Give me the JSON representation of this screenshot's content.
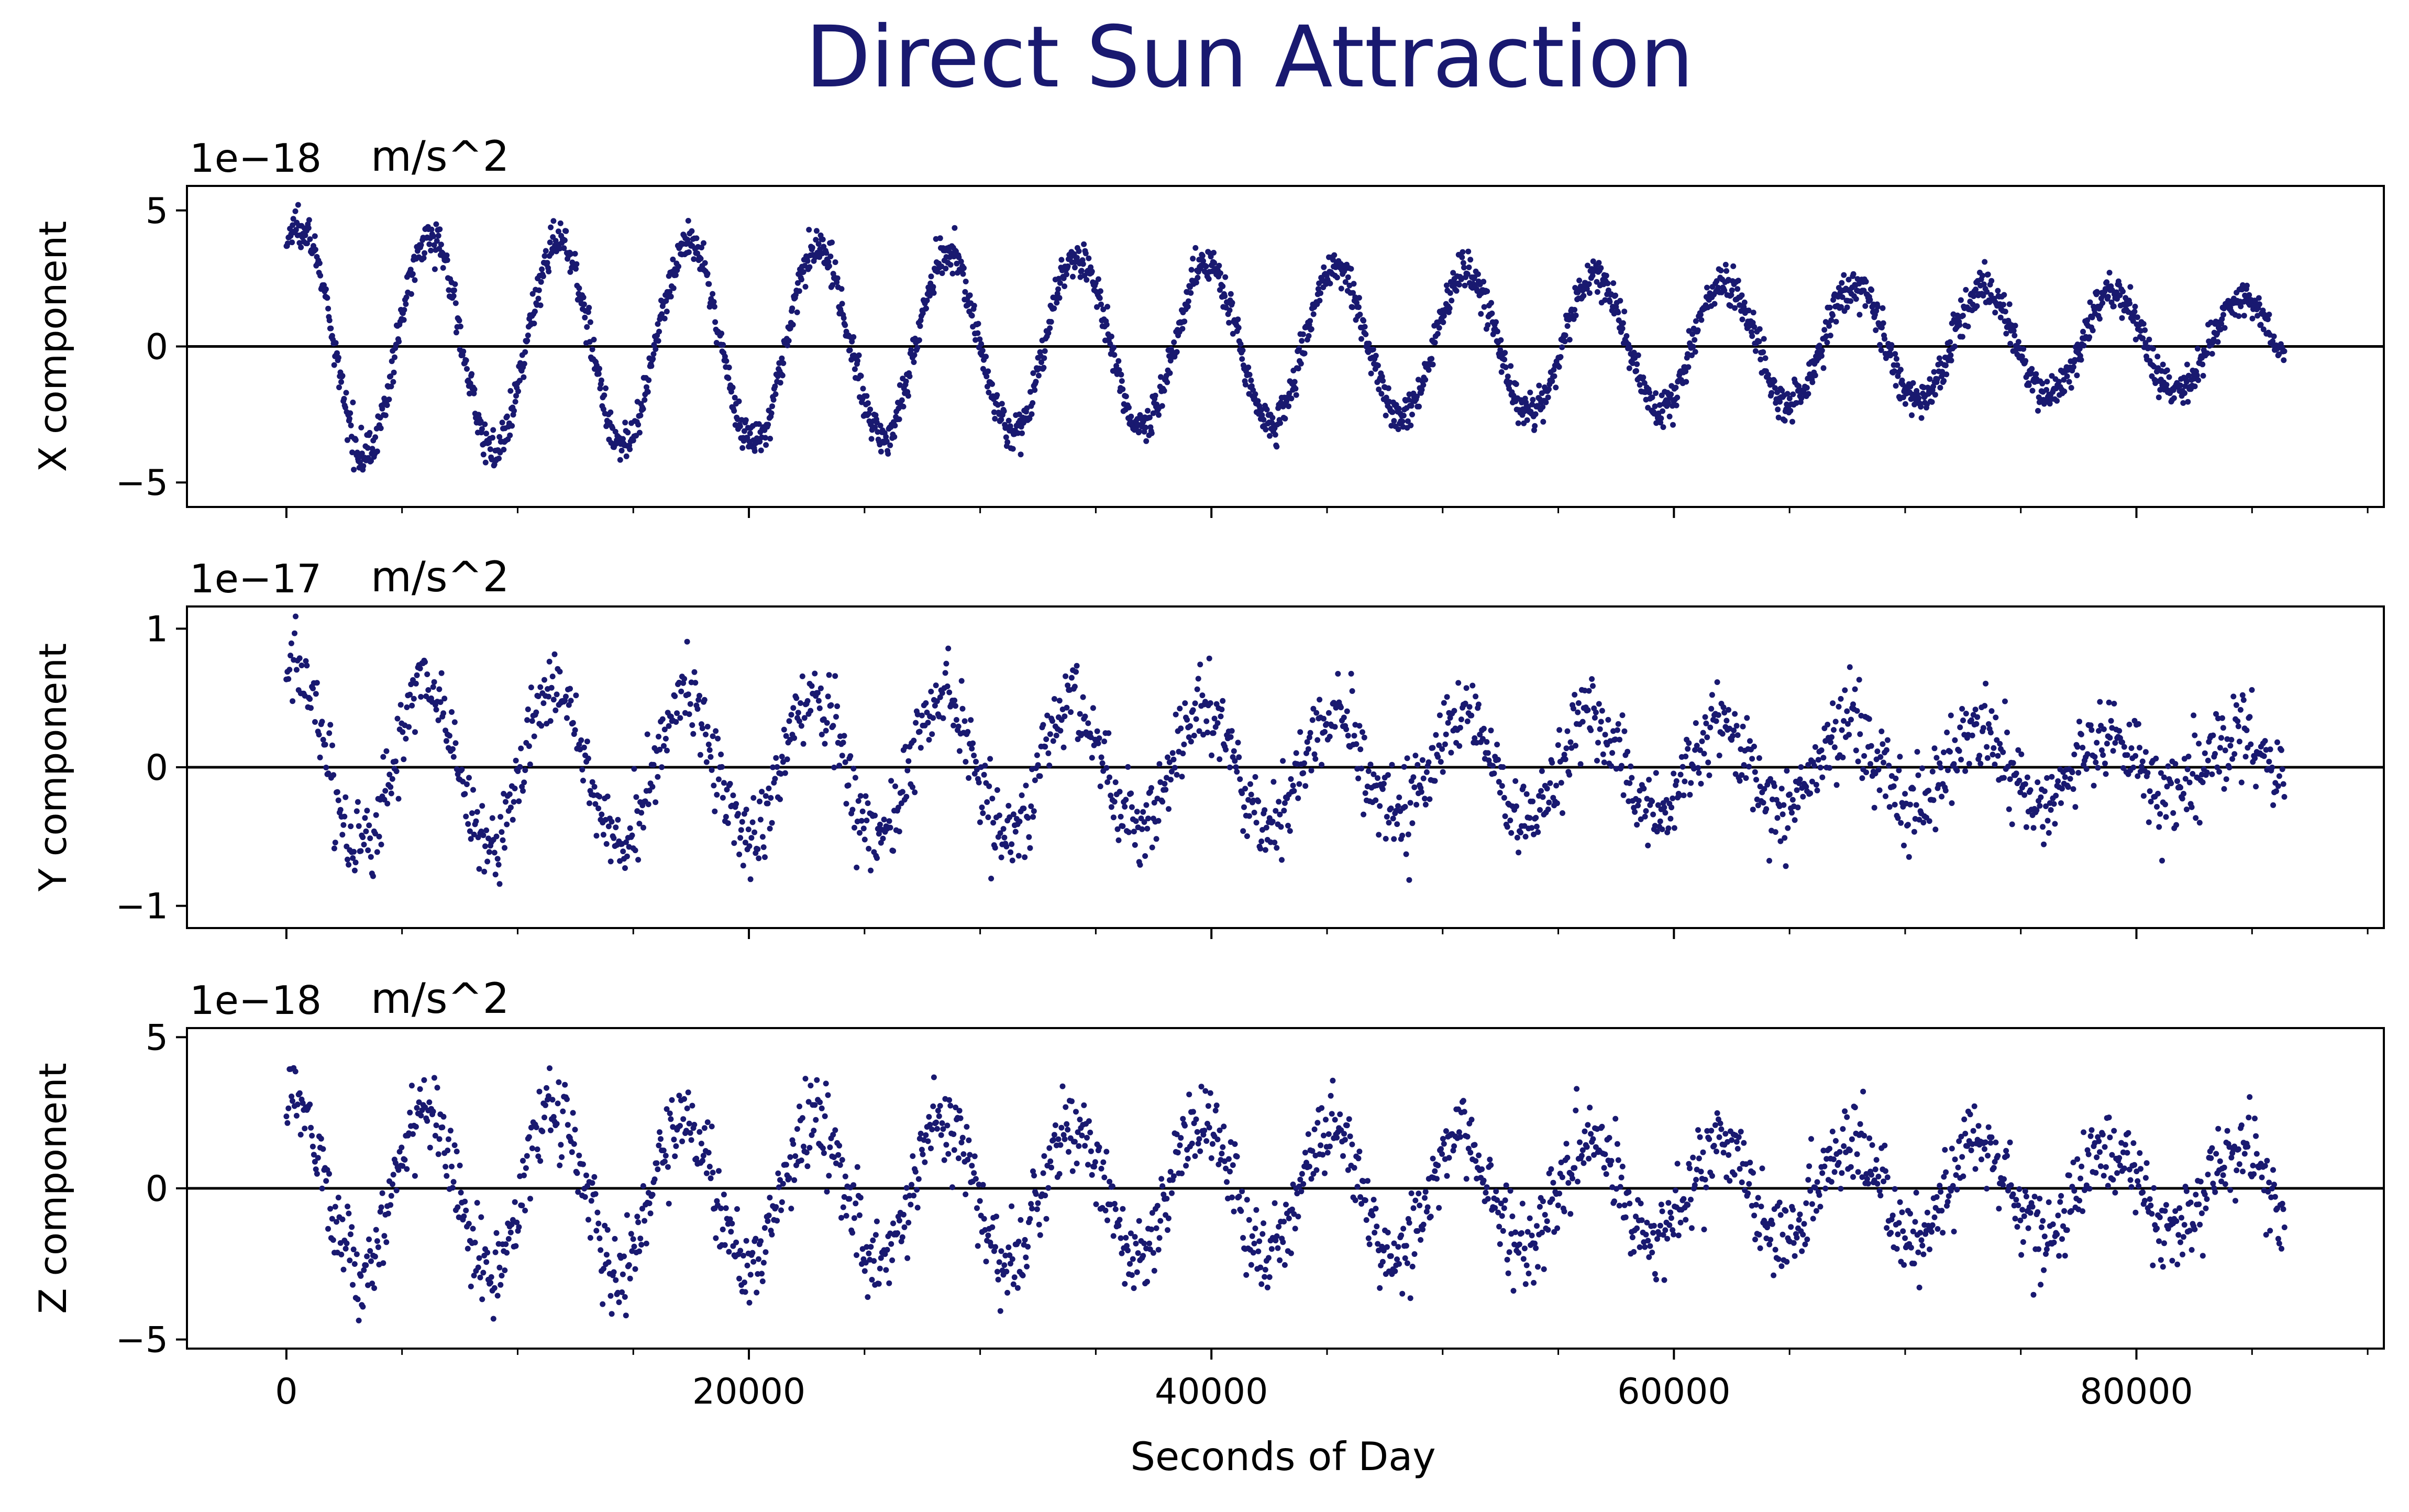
{
  "title": "Direct Sun Attraction",
  "xlabel": "Seconds of Day",
  "colors": {
    "points": "#191970",
    "title": "#191970",
    "axis": "#000000",
    "zero_line": "#000000"
  },
  "chart_data": [
    {
      "type": "scatter",
      "ylabel": "X component",
      "exponent": "1e−18",
      "unit": "m/s^2",
      "xlim": [
        -4300,
        90700
      ],
      "ylim": [
        -5.9,
        5.9
      ],
      "xticks": [
        0,
        20000,
        40000,
        60000,
        80000
      ],
      "xtick_labels": [
        "0",
        "20000",
        "40000",
        "60000",
        "80000"
      ],
      "yticks": [
        -5,
        0,
        5
      ],
      "ytick_labels": [
        "−5",
        "0",
        "5"
      ],
      "zero_line": true,
      "series": [
        {
          "x_start": 0,
          "x_end": 86400,
          "n_points": 2880,
          "period_s": 5600,
          "phase_s": 600,
          "amplitude_start": 4.2,
          "amplitude_end": 1.6,
          "offset": 0.1,
          "offset_start": 0.3,
          "noise": 0.35
        }
      ]
    },
    {
      "type": "scatter",
      "ylabel": "Y component",
      "exponent": "1e−17",
      "unit": "m/s^2",
      "xlim": [
        -4300,
        90700
      ],
      "ylim": [
        -1.16,
        1.16
      ],
      "xticks": [
        0,
        20000,
        40000,
        60000,
        80000
      ],
      "xtick_labels": [
        "0",
        "20000",
        "40000",
        "60000",
        "80000"
      ],
      "yticks": [
        -1,
        0,
        1
      ],
      "ytick_labels": [
        "−1",
        "0",
        "1"
      ],
      "zero_line": true,
      "series": [
        {
          "x_start": 0,
          "x_end": 86400,
          "n_points": 1960,
          "period_s": 5600,
          "phase_s": 400,
          "amplitude_start": 0.62,
          "amplitude_end": 0.22,
          "offset": 0.0,
          "offset_start": 0.1,
          "noise": 0.15
        }
      ]
    },
    {
      "type": "scatter",
      "ylabel": "Z component",
      "exponent": "1e−18",
      "unit": "m/s^2",
      "xlim": [
        -4300,
        90700
      ],
      "ylim": [
        -5.3,
        5.3
      ],
      "xticks": [
        0,
        20000,
        40000,
        60000,
        80000
      ],
      "xtick_labels": [
        "0",
        "20000",
        "40000",
        "60000",
        "80000"
      ],
      "yticks": [
        -5,
        0,
        5
      ],
      "ytick_labels": [
        "−5",
        "0",
        "5"
      ],
      "zero_line": true,
      "series": [
        {
          "x_start": 0,
          "x_end": 86400,
          "n_points": 1960,
          "period_s": 5600,
          "phase_s": 400,
          "amplitude_start": 2.9,
          "amplitude_end": 1.3,
          "offset": -0.1,
          "offset_start": 0.3,
          "noise": 0.7
        }
      ]
    }
  ]
}
